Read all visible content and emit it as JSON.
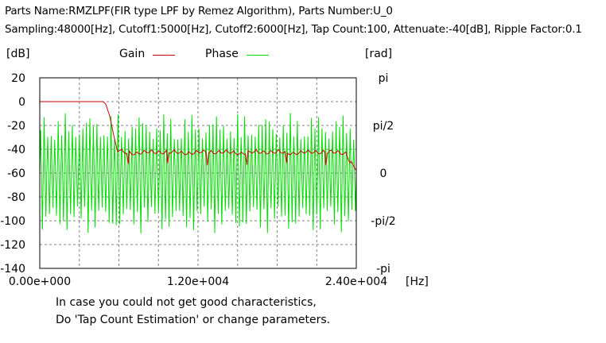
{
  "header": {
    "line1": "Parts Name:RMZLPF(FIR type LPF by Remez Algorithm), Parts Number:U_0",
    "line2": "Sampling:48000[Hz], Cutoff1:5000[Hz], Cutoff2:6000[Hz], Tap Count:100, Attenuate:-40[dB], Ripple Factor:0.1"
  },
  "units": {
    "left": "[dB]",
    "right": "[rad]",
    "x": "[Hz]"
  },
  "legend": {
    "gain": "Gain",
    "phase": "Phase"
  },
  "notes": {
    "line1": "In case you could not get good characteristics,",
    "line2": "Do 'Tap Count Estimation' or change parameters."
  },
  "chart_data": {
    "type": "line",
    "title": "",
    "grid": true,
    "xlim": [
      0,
      24000
    ],
    "ylim_left": [
      -140,
      20
    ],
    "ylim_right_labels": [
      "pi",
      "pi/2",
      "0",
      "-pi/2",
      "-pi"
    ],
    "x_tick_labels": [
      "0.00e+000",
      "1.20e+004",
      "2.40e+004"
    ],
    "y_tick_labels_left": [
      "20",
      "0",
      "-20",
      "-40",
      "-60",
      "-80",
      "-100",
      "-120",
      "-140"
    ],
    "series": [
      {
        "name": "Gain",
        "color": "#cc0000",
        "axis": "left",
        "x": [
          0,
          4800,
          5000,
          5300,
          5600,
          5900,
          6200,
          7200,
          8200,
          9200,
          10200,
          11200,
          12200,
          13200,
          14200,
          15200,
          16200,
          17200,
          18200,
          19200,
          20200,
          21200,
          22200,
          23200,
          24000
        ],
        "y": [
          0,
          0,
          -2,
          -12,
          -28,
          -42,
          -40,
          -42,
          -40,
          -41,
          -40,
          -42,
          -40,
          -41,
          -40,
          -42,
          -40,
          -41,
          -40,
          -42,
          -40,
          -41,
          -40,
          -42,
          -58
        ]
      },
      {
        "name": "Phase",
        "color": "#00dd00",
        "axis": "right",
        "x_range": [
          0,
          24000
        ],
        "amplitude_rad": 2.0,
        "oscillations": 90
      }
    ]
  }
}
